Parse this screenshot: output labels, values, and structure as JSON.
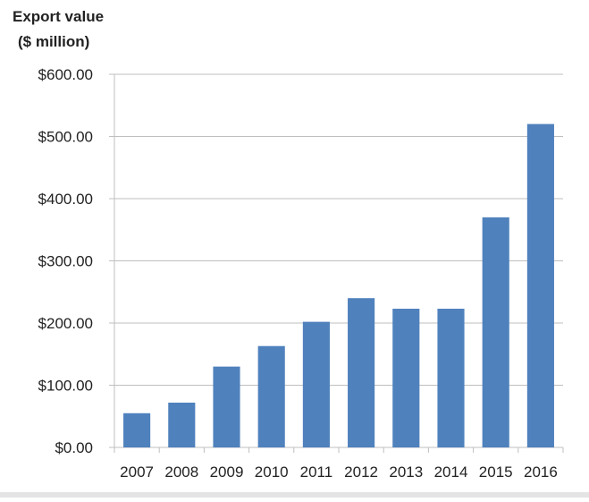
{
  "chart_data": {
    "type": "bar",
    "title": "",
    "ylabel_lines": [
      "Export value",
      "($ million)"
    ],
    "xlabel": "",
    "categories": [
      "2007",
      "2008",
      "2009",
      "2010",
      "2011",
      "2012",
      "2013",
      "2014",
      "2015",
      "2016"
    ],
    "values": [
      55,
      72,
      130,
      163,
      202,
      240,
      223,
      223,
      370,
      520
    ],
    "ylim": [
      0,
      600
    ],
    "y_ticks": [
      0,
      100,
      200,
      300,
      400,
      500,
      600
    ],
    "y_tick_labels": [
      "$0.00",
      "$100.00",
      "$200.00",
      "$300.00",
      "$400.00",
      "$500.00",
      "$600.00"
    ],
    "grid": "horizontal",
    "legend": "none",
    "bar_color": "#4f81bd",
    "grid_color": "#bfbfbf"
  }
}
